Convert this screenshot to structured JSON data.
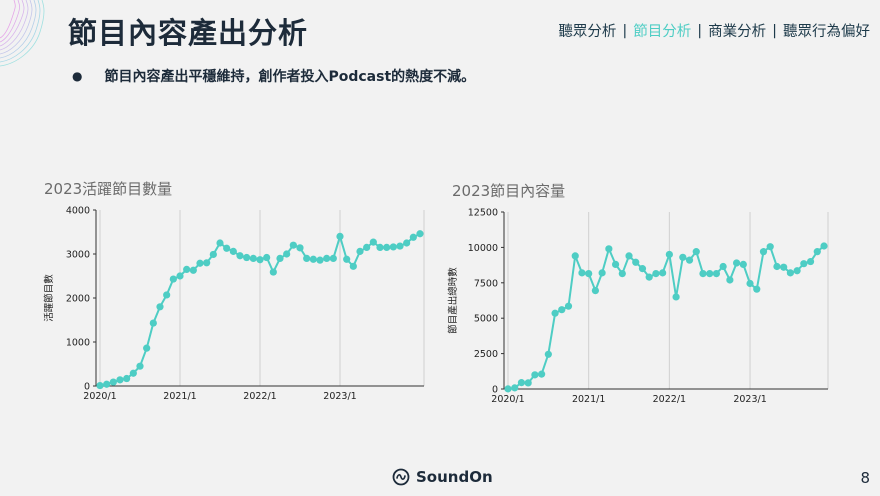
{
  "header": {
    "title": "節目內容產出分析",
    "nav": [
      {
        "label": "聽眾分析",
        "active": false
      },
      {
        "label": "節目分析",
        "active": true
      },
      {
        "label": "商業分析",
        "active": false
      },
      {
        "label": "聽眾行為偏好",
        "active": false
      }
    ],
    "nav_separator": "|"
  },
  "bullet": {
    "marker": "●",
    "text": "節目內容產出平穩維持，創作者投入Podcast的熱度不減。"
  },
  "colors": {
    "accent": "#4ecdc4",
    "title": "#1d2b3a",
    "background": "#f2f2f2"
  },
  "chart_data": [
    {
      "type": "line",
      "title": "2023活躍節目數量",
      "xlabel": "",
      "ylabel": "活躍節目數",
      "ylim": [
        0,
        4000
      ],
      "yticks": [
        0,
        1000,
        2000,
        3000,
        4000
      ],
      "xtick_labels": [
        "2020/1",
        "2021/1",
        "2022/1",
        "2023/1"
      ],
      "xtick_index": [
        0,
        12,
        24,
        36
      ],
      "grid": "vertical",
      "color": "#4ecdc4",
      "values": [
        10,
        40,
        90,
        140,
        170,
        290,
        450,
        860,
        1430,
        1800,
        2070,
        2430,
        2500,
        2650,
        2630,
        2790,
        2800,
        2990,
        3250,
        3130,
        3060,
        2960,
        2920,
        2900,
        2870,
        2920,
        2590,
        2900,
        3000,
        3200,
        3140,
        2900,
        2880,
        2860,
        2900,
        2900,
        3400,
        2880,
        2720,
        3060,
        3150,
        3270,
        3150,
        3150,
        3160,
        3180,
        3250,
        3380,
        3460
      ]
    },
    {
      "type": "line",
      "title": "2023節目內容量",
      "xlabel": "",
      "ylabel": "節目產出總時數",
      "ylim": [
        0,
        12500
      ],
      "yticks": [
        0,
        2500,
        5000,
        7500,
        10000,
        12500
      ],
      "xtick_labels": [
        "2020/1",
        "2021/1",
        "2022/1",
        "2023/1"
      ],
      "xtick_index": [
        0,
        12,
        24,
        36
      ],
      "grid": "vertical",
      "color": "#4ecdc4",
      "values": [
        10,
        80,
        450,
        430,
        1000,
        1050,
        2450,
        5350,
        5600,
        5850,
        9400,
        8200,
        8150,
        6950,
        8200,
        9900,
        8800,
        8150,
        9400,
        8950,
        8500,
        7900,
        8150,
        8200,
        9500,
        6500,
        9300,
        9100,
        9700,
        8150,
        8150,
        8150,
        8650,
        7700,
        8900,
        8800,
        7450,
        7050,
        9700,
        10050,
        8650,
        8600,
        8200,
        8350,
        8850,
        9000,
        9700,
        10100
      ]
    }
  ],
  "footer": {
    "brand": "SoundOn",
    "page_number": "8"
  }
}
